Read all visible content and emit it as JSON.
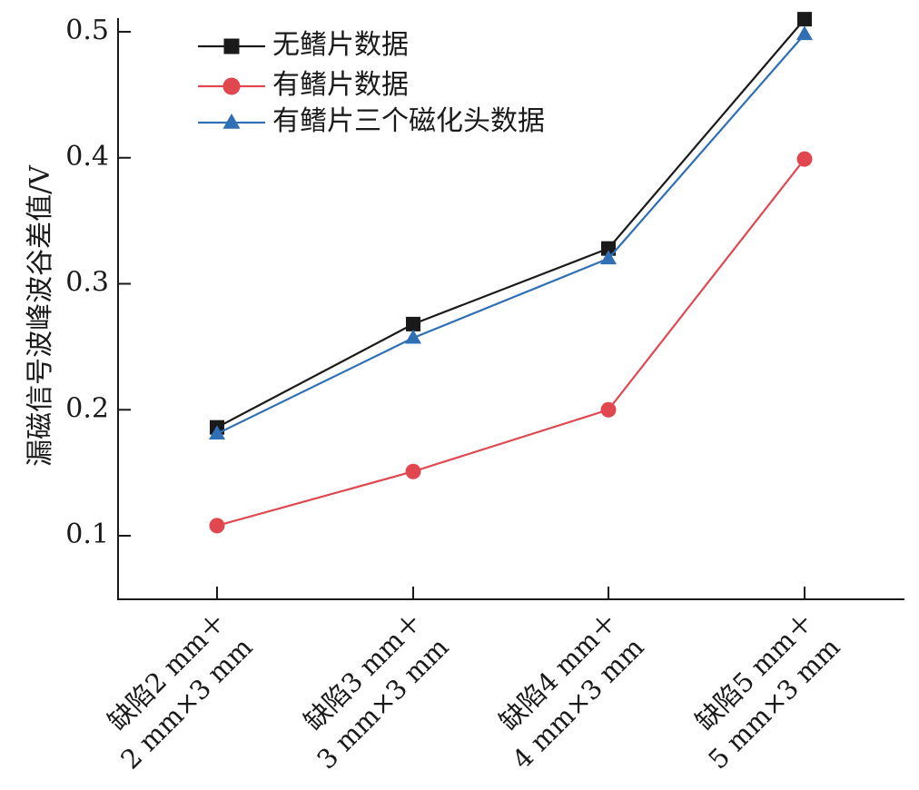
{
  "chart_data": {
    "type": "line",
    "title": "",
    "xlabel": "",
    "ylabel": "漏磁信号波峰波谷差值/V",
    "categories": [
      [
        "缺陷2 mm＋",
        "2 mm×3 mm"
      ],
      [
        "缺陷3 mm＋",
        "3 mm×3 mm"
      ],
      [
        "缺陷4 mm＋",
        "4 mm×3 mm"
      ],
      [
        "缺陷5 mm＋",
        "5 mm×3 mm"
      ]
    ],
    "ylim": [
      0.05,
      0.51
    ],
    "yticks": [
      "0.1",
      "0.2",
      "0.3",
      "0.4",
      "0.5"
    ],
    "ytick_values": [
      0.1,
      0.2,
      0.3,
      0.4,
      0.5
    ],
    "grid": false,
    "legend_position": "top-left",
    "series": [
      {
        "name": "无鳍片数据",
        "marker": "square",
        "color": "#1a1a1a",
        "values": [
          0.186,
          0.268,
          0.328,
          0.51
        ]
      },
      {
        "name": "有鳍片数据",
        "marker": "circle",
        "color": "#e0474f",
        "values": [
          0.108,
          0.151,
          0.2,
          0.399
        ]
      },
      {
        "name": "有鳍片三个磁化头数据",
        "marker": "triangle",
        "color": "#2f6fb5",
        "values": [
          0.181,
          0.257,
          0.32,
          0.498
        ]
      }
    ]
  }
}
